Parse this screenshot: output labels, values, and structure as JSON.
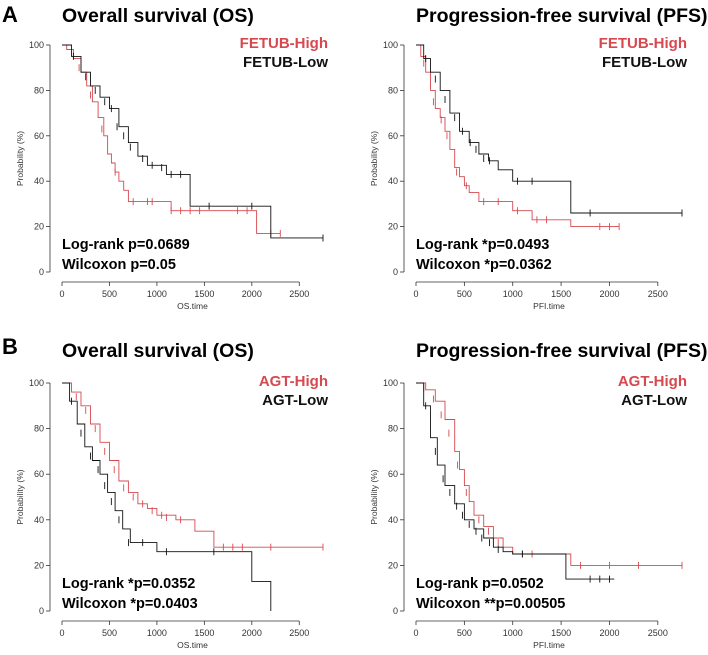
{
  "colors": {
    "high": "#d6494f",
    "low": "#111111",
    "axis": "#333333"
  },
  "chart_data": [
    {
      "type": "line",
      "panel": "A",
      "title": "Overall survival (OS)",
      "xlabel": "OS.time",
      "ylabel": "Probability (%)",
      "xlim": [
        0,
        2750
      ],
      "ylim": [
        0,
        100
      ],
      "xticks": [
        0,
        500,
        1000,
        1500,
        2000,
        2500
      ],
      "yticks": [
        0,
        20,
        40,
        60,
        80,
        100
      ],
      "stats": [
        "Log-rank p=0.0689",
        "Wilcoxon p=0.05"
      ],
      "series": [
        {
          "name": "FETUB-High",
          "color": "#d6494f",
          "x": [
            0,
            50,
            120,
            200,
            260,
            320,
            380,
            440,
            480,
            520,
            560,
            600,
            650,
            700,
            800,
            1000,
            1150,
            1300,
            1550,
            1900,
            2050,
            2300
          ],
          "y": [
            100,
            98,
            94,
            88,
            82,
            75,
            68,
            60,
            52,
            48,
            44,
            40,
            36,
            31,
            31,
            31,
            27,
            27,
            27,
            27,
            17,
            17
          ],
          "censor_x": [
            180,
            300,
            420,
            560,
            750,
            900,
            950,
            1150,
            1250,
            1350,
            1450,
            1850,
            1950,
            2200,
            2300
          ],
          "censor_y": [
            90,
            78,
            63,
            44,
            31,
            31,
            31,
            27,
            27,
            27,
            27,
            27,
            27,
            17,
            17
          ]
        },
        {
          "name": "FETUB-Low",
          "color": "#111111",
          "x": [
            0,
            100,
            200,
            300,
            400,
            500,
            600,
            700,
            800,
            900,
            1000,
            1100,
            1350,
            1550,
            2200,
            2750
          ],
          "y": [
            100,
            95,
            88,
            82,
            77,
            72,
            64,
            57,
            51,
            47,
            47,
            43,
            29,
            29,
            15,
            15
          ],
          "censor_x": [
            120,
            250,
            350,
            450,
            520,
            580,
            650,
            720,
            850,
            950,
            1050,
            1150,
            1250,
            1550,
            2000,
            2750
          ],
          "censor_y": [
            95,
            86,
            80,
            75,
            72,
            64,
            60,
            55,
            50,
            47,
            46,
            43,
            43,
            29,
            29,
            15
          ]
        }
      ],
      "legend": [
        {
          "text": "FETUB-High",
          "color": "#d6494f"
        },
        {
          "text": "FETUB-Low",
          "color": "#111111"
        }
      ]
    },
    {
      "type": "line",
      "panel": "",
      "title": "Progression-free survival (PFS)",
      "xlabel": "PFI.time",
      "ylabel": "Probability (%)",
      "xlim": [
        0,
        2750
      ],
      "ylim": [
        0,
        100
      ],
      "xticks": [
        0,
        500,
        1000,
        1500,
        2000,
        2500
      ],
      "yticks": [
        0,
        20,
        40,
        60,
        80,
        100
      ],
      "stats": [
        "Log-rank *p=0.0493",
        "Wilcoxon *p=0.0362"
      ],
      "series": [
        {
          "name": "FETUB-High",
          "color": "#d6494f",
          "x": [
            0,
            50,
            100,
            150,
            200,
            250,
            300,
            350,
            400,
            450,
            500,
            550,
            650,
            800,
            1000,
            1200,
            1600,
            2100
          ],
          "y": [
            100,
            95,
            88,
            80,
            72,
            68,
            62,
            54,
            46,
            42,
            38,
            35,
            31,
            31,
            27,
            23,
            20,
            20
          ],
          "censor_x": [
            80,
            180,
            260,
            320,
            420,
            520,
            700,
            850,
            1050,
            1250,
            1350,
            1900,
            2000,
            2100
          ],
          "censor_y": [
            92,
            75,
            67,
            60,
            44,
            38,
            31,
            31,
            27,
            23,
            23,
            20,
            20,
            20
          ]
        },
        {
          "name": "FETUB-Low",
          "color": "#111111",
          "x": [
            0,
            80,
            150,
            250,
            350,
            450,
            550,
            650,
            750,
            850,
            1000,
            1300,
            1600,
            2750
          ],
          "y": [
            100,
            94,
            88,
            80,
            70,
            62,
            57,
            52,
            49,
            45,
            40,
            40,
            26,
            26
          ],
          "censor_x": [
            100,
            200,
            300,
            400,
            480,
            560,
            620,
            700,
            760,
            1050,
            1200,
            1800,
            2750
          ],
          "censor_y": [
            94,
            85,
            76,
            68,
            62,
            57,
            54,
            50,
            49,
            40,
            40,
            26,
            26
          ]
        }
      ],
      "legend": [
        {
          "text": "FETUB-High",
          "color": "#d6494f"
        },
        {
          "text": "FETUB-Low",
          "color": "#111111"
        }
      ]
    },
    {
      "type": "line",
      "panel": "B",
      "title": "Overall survival (OS)",
      "xlabel": "OS.time",
      "ylabel": "Probability (%)",
      "xlim": [
        0,
        2750
      ],
      "ylim": [
        0,
        100
      ],
      "xticks": [
        0,
        500,
        1000,
        1500,
        2000,
        2500
      ],
      "yticks": [
        0,
        20,
        40,
        60,
        80,
        100
      ],
      "stats": [
        "Log-rank *p=0.0352",
        "Wilcoxon *p=0.0403"
      ],
      "series": [
        {
          "name": "AGT-High",
          "color": "#d6494f",
          "x": [
            0,
            100,
            200,
            300,
            400,
            500,
            600,
            700,
            800,
            900,
            1000,
            1200,
            1400,
            1600,
            2750
          ],
          "y": [
            100,
            96,
            90,
            82,
            74,
            66,
            57,
            52,
            47,
            45,
            42,
            40,
            35,
            28,
            28
          ],
          "censor_x": [
            150,
            250,
            350,
            450,
            550,
            650,
            750,
            850,
            950,
            1050,
            1100,
            1250,
            1700,
            1800,
            1900,
            2200,
            2750
          ],
          "censor_y": [
            94,
            88,
            80,
            70,
            62,
            54,
            50,
            47,
            44,
            42,
            41,
            40,
            28,
            28,
            28,
            28,
            28
          ]
        },
        {
          "name": "AGT-Low",
          "color": "#111111",
          "x": [
            0,
            80,
            160,
            240,
            320,
            400,
            480,
            560,
            640,
            720,
            800,
            1000,
            1500,
            2000,
            2150,
            2200
          ],
          "y": [
            100,
            92,
            82,
            72,
            66,
            60,
            52,
            44,
            36,
            30,
            30,
            26,
            26,
            13,
            13,
            0
          ],
          "censor_x": [
            100,
            200,
            300,
            380,
            450,
            520,
            600,
            700,
            850,
            1100,
            1600
          ],
          "censor_y": [
            92,
            78,
            68,
            62,
            55,
            48,
            40,
            30,
            30,
            26,
            26
          ]
        }
      ],
      "legend": [
        {
          "text": "AGT-High",
          "color": "#d6494f"
        },
        {
          "text": "AGT-Low",
          "color": "#111111"
        }
      ]
    },
    {
      "type": "line",
      "panel": "",
      "title": "Progression-free survival (PFS)",
      "xlabel": "PFI.time",
      "ylabel": "Probability (%)",
      "xlim": [
        0,
        2750
      ],
      "ylim": [
        0,
        100
      ],
      "xticks": [
        0,
        500,
        1000,
        1500,
        2000,
        2500
      ],
      "yticks": [
        0,
        20,
        40,
        60,
        80,
        100
      ],
      "stats": [
        "Log-rank p=0.0502",
        "Wilcoxon **p=0.00505"
      ],
      "series": [
        {
          "name": "AGT-High",
          "color": "#d6494f",
          "x": [
            0,
            100,
            200,
            300,
            400,
            450,
            500,
            550,
            600,
            700,
            800,
            900,
            1000,
            1300,
            1600,
            2750
          ],
          "y": [
            100,
            97,
            92,
            84,
            70,
            62,
            55,
            48,
            42,
            37,
            32,
            28,
            25,
            25,
            20,
            20
          ],
          "censor_x": [
            80,
            180,
            260,
            340,
            430,
            520,
            650,
            750,
            850,
            1100,
            1200,
            1700,
            2000,
            2300,
            2750
          ],
          "censor_y": [
            98,
            93,
            86,
            78,
            64,
            52,
            40,
            35,
            30,
            25,
            25,
            20,
            20,
            20,
            20
          ]
        },
        {
          "name": "AGT-Low",
          "color": "#111111",
          "x": [
            0,
            80,
            150,
            220,
            300,
            400,
            500,
            600,
            700,
            800,
            900,
            1000,
            1300,
            1550,
            2050
          ],
          "y": [
            100,
            90,
            76,
            64,
            55,
            47,
            40,
            36,
            32,
            28,
            26,
            25,
            25,
            14,
            14
          ],
          "censor_x": [
            100,
            200,
            280,
            350,
            420,
            480,
            550,
            620,
            680,
            760,
            850,
            1100,
            1800,
            1900,
            2000
          ],
          "censor_y": [
            90,
            70,
            58,
            52,
            46,
            42,
            38,
            35,
            32,
            30,
            27,
            25,
            14,
            14,
            14
          ]
        }
      ],
      "legend": [
        {
          "text": "AGT-High",
          "color": "#d6494f"
        },
        {
          "text": "AGT-Low",
          "color": "#111111"
        }
      ]
    }
  ]
}
